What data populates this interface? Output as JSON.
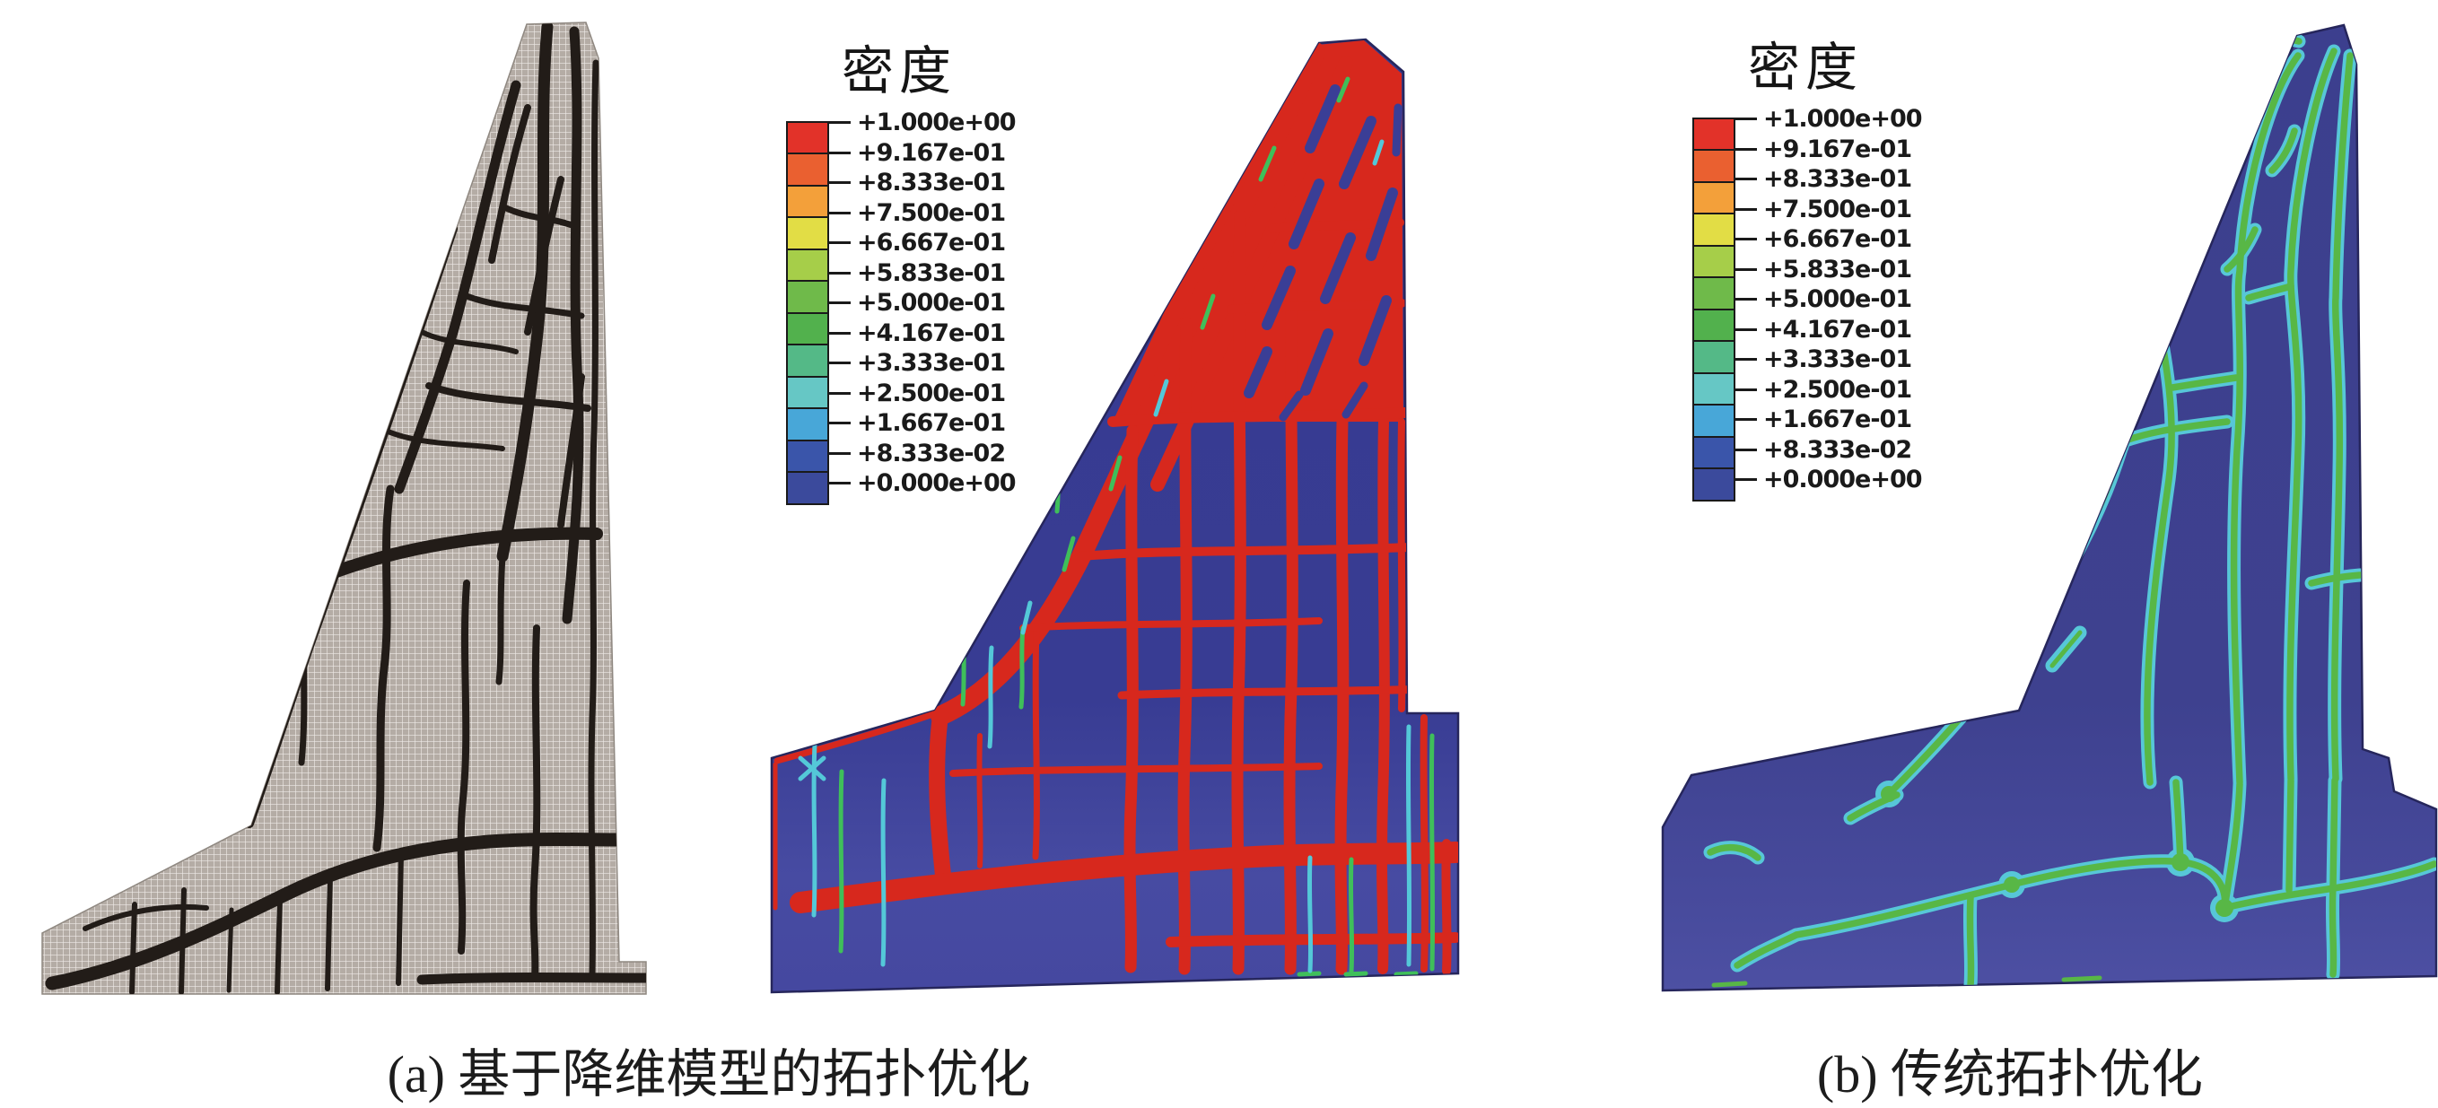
{
  "figure": {
    "legend": {
      "title": "密度",
      "values": [
        "+1.000e+00",
        "+9.167e-01",
        "+8.333e-01",
        "+7.500e-01",
        "+6.667e-01",
        "+5.833e-01",
        "+5.000e-01",
        "+4.167e-01",
        "+3.333e-01",
        "+2.500e-01",
        "+1.667e-01",
        "+8.333e-02",
        "+0.000e+00"
      ],
      "colors": [
        "#e23229",
        "#ea6030",
        "#f3a03a",
        "#e2dd45",
        "#a6ce49",
        "#6fba4a",
        "#52b14d",
        "#54b987",
        "#66c7c5",
        "#48a7d8",
        "#3a55aa",
        "#3b4a9c"
      ]
    },
    "captions": {
      "a": "(a) 基于降维模型的拓扑优化",
      "b": "(b) 传统拓扑优化"
    },
    "colors": {
      "mesh_cell": "#b4aca5",
      "mesh_line": "#eeeae6",
      "mesh_black": "#221c18",
      "density_background_blue": "#383c93",
      "density_red": "#d7281d",
      "density_green": "#3fbf5a",
      "density_cyan": "#54c8d8",
      "traditional_background_blue": "#3c3f8e",
      "traditional_green": "#58b746",
      "traditional_cyan": "#57c7d8"
    }
  }
}
